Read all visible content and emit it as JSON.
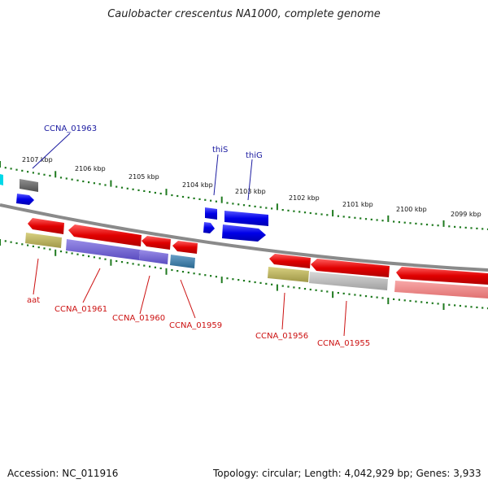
{
  "title": "Caulobacter crescentus NA1000, complete genome",
  "footer": {
    "accession": "Accession: NC_011916",
    "topology": "Topology: circular; Length: 4,042,929 bp; Genes: 3,933"
  },
  "colors": {
    "backbone": "#8a8a8a",
    "tick": "#1f7a1f",
    "forward_gene": "#1010e0",
    "reverse_gene": "#e01010",
    "forward_label": "#1a1aa0",
    "reverse_label": "#cc1111"
  },
  "ticks": {
    "labels": [
      "2107 kbp",
      "2106 kbp",
      "2105 kbp",
      "2104 kbp",
      "2103 kbp",
      "2102 kbp",
      "2101 kbp",
      "2100 kbp",
      "2099 kbp"
    ]
  },
  "gene_labels": {
    "top": [
      "CCNA_01963",
      "thiS",
      "thiG"
    ],
    "bottom": [
      "aat",
      "CCNA_01961",
      "CCNA_01960",
      "CCNA_01959",
      "CCNA_01956",
      "CCNA_01955"
    ]
  }
}
